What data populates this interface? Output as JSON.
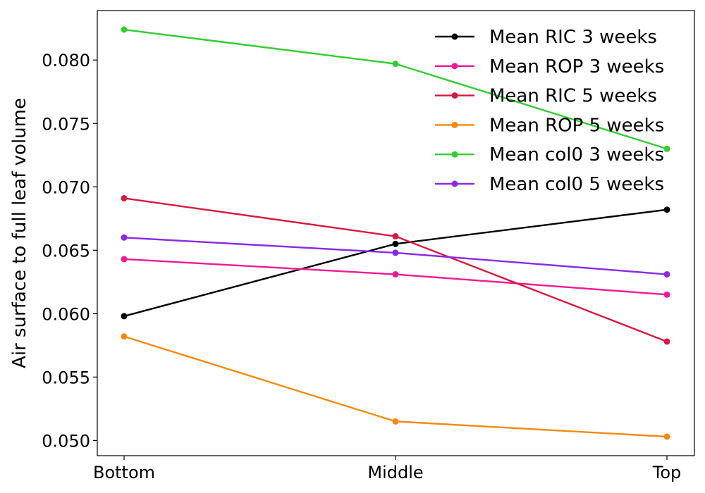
{
  "chart_data": {
    "type": "line",
    "title": "",
    "xlabel": "",
    "ylabel": "Air surface to full leaf volume",
    "categories": [
      "Bottom",
      "Middle",
      "Top"
    ],
    "ylim": [
      0.0488,
      0.0839
    ],
    "yticks": [
      0.05,
      0.055,
      0.06,
      0.065,
      0.07,
      0.075,
      0.08
    ],
    "ytick_labels": [
      "0.050",
      "0.055",
      "0.060",
      "0.065",
      "0.070",
      "0.075",
      "0.080"
    ],
    "grid": false,
    "legend_position": "top-right",
    "series": [
      {
        "name": "Mean RIC 3 weeks",
        "color": "#000000",
        "values": [
          0.0598,
          0.0655,
          0.0682
        ]
      },
      {
        "name": "Mean ROP 3 weeks",
        "color": "#f01a96",
        "values": [
          0.0643,
          0.0631,
          0.0615
        ]
      },
      {
        "name": "Mean RIC 5 weeks",
        "color": "#d7193f",
        "values": [
          0.0691,
          0.0661,
          0.0578
        ]
      },
      {
        "name": "Mean ROP 5 weeks",
        "color": "#f5890e",
        "values": [
          0.0582,
          0.0515,
          0.0503
        ]
      },
      {
        "name": "Mean col0 3 weeks",
        "color": "#32cd32",
        "values": [
          0.0824,
          0.0797,
          0.073
        ]
      },
      {
        "name": "Mean col0 5 weeks",
        "color": "#8a2be2",
        "values": [
          0.066,
          0.0648,
          0.0631
        ]
      }
    ]
  }
}
